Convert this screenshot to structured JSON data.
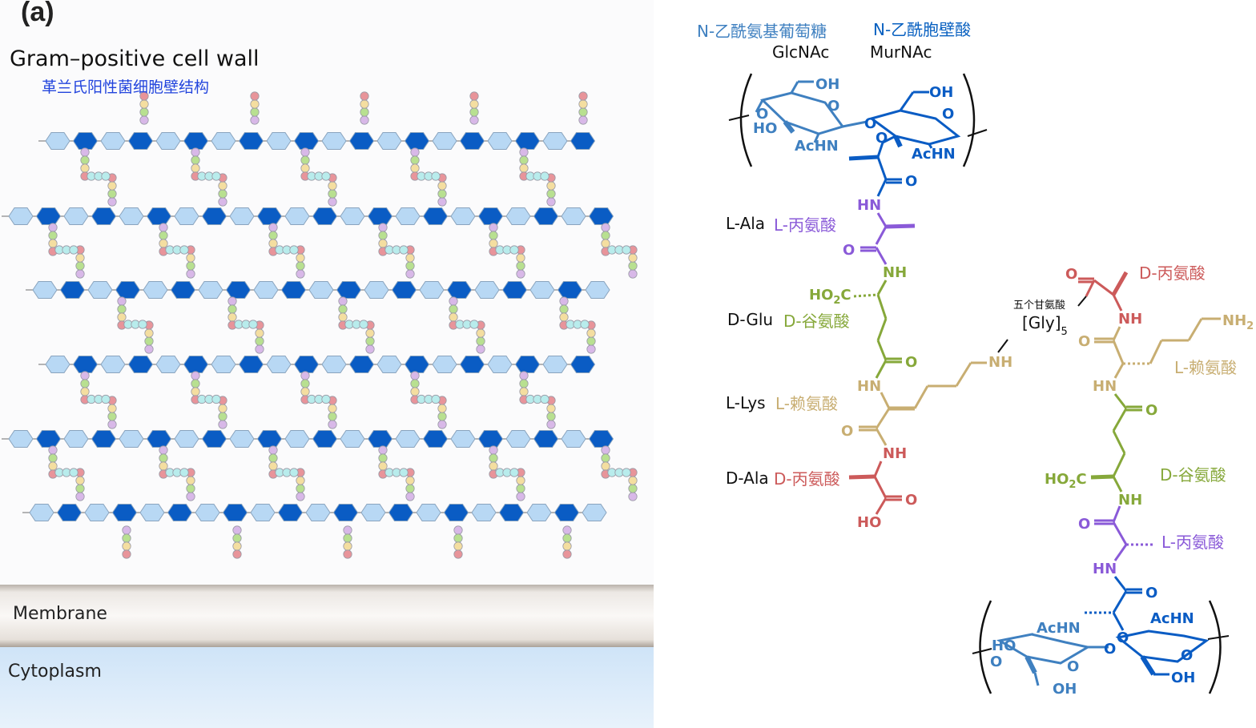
{
  "panel_label": "(a)",
  "cell_wall": {
    "title": "Gram–positive cell wall",
    "subtitle_cn": "革兰氏阳性菌细胞壁结构",
    "membrane_label": "Membrane",
    "cytoplasm_label": "Cytoplasm"
  },
  "colors": {
    "glcnac": "#b8d8f4",
    "murnac": "#0a5cc4",
    "peptide_beads": [
      "#e8949a",
      "#f4dea0",
      "#b8e090",
      "#d8b8e8"
    ],
    "bridge_bead": "#b8ecec",
    "glcnac_text": "#3f80c0",
    "murnac_text": "#0860c0",
    "ala": "#8a5ad8",
    "glu": "#86a83a",
    "lys": "#c8ae72",
    "d_ala": "#cc5a5a"
  },
  "structure": {
    "sugar_labels": {
      "glcnac_cn": "N-乙酰氨基葡萄糖",
      "glcnac": "GlcNAc",
      "murnac_cn": "N-乙酰胞壁酸",
      "murnac": "MurNAc"
    },
    "left_chain_names": [
      {
        "en": "L-Ala",
        "cn": "L-丙氨酸"
      },
      {
        "en": "D-Glu",
        "cn": "D-谷氨酸"
      },
      {
        "en": "L-Lys",
        "cn": "L-赖氨酸"
      },
      {
        "en": "D-Ala",
        "cn": "D-丙氨酸"
      }
    ],
    "right_chain_names": {
      "d_ala": "D-丙氨酸",
      "l_lys": "L-赖氨酸",
      "d_glu": "D-谷氨酸",
      "l_ala": "L-丙氨酸"
    },
    "gly_bridge": {
      "cn": "五个甘氨酸",
      "label": "[Gly]",
      "subscript": "5"
    },
    "atoms": {
      "oh": "OH",
      "ho": "HO",
      "o": "O",
      "achn": "AcHN",
      "hn": "HN",
      "nh": "NH",
      "nh2": "NH",
      "nh2_sub": "2",
      "ho2c": "HO",
      "ho2c_sub": "2",
      "ho2c_tail": "C",
      "carbonyl": "O",
      "ho_acid": "HO"
    }
  }
}
